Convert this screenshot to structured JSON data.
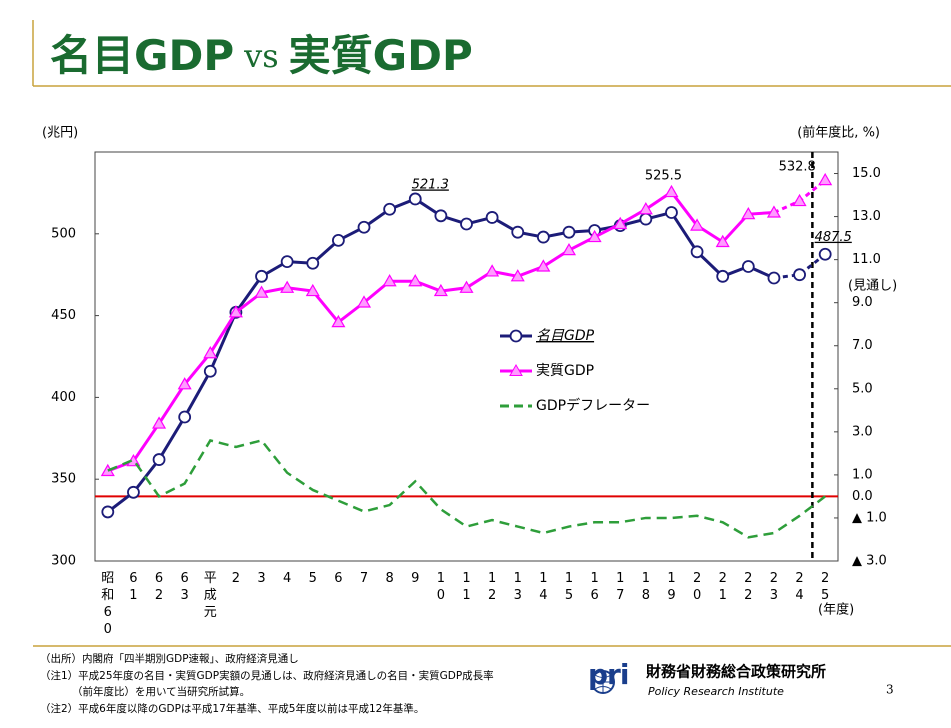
{
  "title": [
    "名目GDP",
    "vs",
    "実質GDP"
  ],
  "chart_data": {
    "type": "line",
    "y_label": "(兆円)",
    "y2_label": "(前年度比, %)",
    "x_label": "(年度)",
    "forecast_label": "(見通し)",
    "categories": [
      "昭和60",
      "61",
      "62",
      "63",
      "平成元",
      "2",
      "3",
      "4",
      "5",
      "6",
      "7",
      "8",
      "9",
      "10",
      "11",
      "12",
      "13",
      "14",
      "15",
      "16",
      "17",
      "18",
      "19",
      "20",
      "21",
      "22",
      "23",
      "24",
      "25"
    ],
    "series": [
      {
        "name": "名目GDP",
        "color": "#1c1c78",
        "marker": "circle",
        "values": [
          330,
          342,
          362,
          388,
          416,
          452,
          474,
          483,
          482,
          496,
          504,
          515,
          521.3,
          511,
          506,
          510,
          501,
          498,
          501,
          502,
          505,
          509,
          513,
          489,
          474,
          480,
          473,
          475,
          487.5
        ]
      },
      {
        "name": "実質GDP",
        "color": "#ff00ff",
        "marker": "triangle",
        "values": [
          355,
          361,
          384,
          408,
          427,
          452,
          464,
          467,
          465,
          446,
          458,
          471,
          471,
          465,
          467,
          477,
          474,
          480,
          490,
          498,
          506,
          515,
          525.5,
          505,
          495,
          512,
          513,
          520,
          532.8
        ]
      },
      {
        "name": "GDPデフレーター",
        "color": "#2e9e3a",
        "marker": "none",
        "axis": "y2",
        "values": [
          1.2,
          1.7,
          0.0,
          0.6,
          2.6,
          2.3,
          2.6,
          1.1,
          0.3,
          -0.2,
          -0.7,
          -0.4,
          0.7,
          -0.6,
          -1.4,
          -1.1,
          -1.4,
          -1.7,
          -1.4,
          -1.2,
          -1.2,
          -1.0,
          -1.0,
          -0.9,
          -1.2,
          -1.9,
          -1.7,
          -0.9,
          0.0
        ]
      }
    ],
    "ylim": [
      300,
      550
    ],
    "yticks": [
      300,
      350,
      400,
      450,
      500
    ],
    "y2lim": [
      -3,
      16
    ],
    "y2ticks": [
      {
        "value": 15,
        "label": "15.0"
      },
      {
        "value": 13,
        "label": "13.0"
      },
      {
        "value": 11,
        "label": "11.0"
      },
      {
        "value": 9,
        "label": "9.0"
      },
      {
        "value": 7,
        "label": "7.0"
      },
      {
        "value": 5,
        "label": "5.0"
      },
      {
        "value": 3,
        "label": "3.0"
      },
      {
        "value": 1,
        "label": "1.0"
      },
      {
        "value": 0,
        "label": "0.0"
      },
      {
        "value": -1,
        "label": "▲ 1.0"
      },
      {
        "value": -3,
        "label": "▲ 3.0"
      }
    ],
    "zero_line_color": "#e00000",
    "grid": false
  },
  "footer": {
    "notes": [
      "（出所）内閣府「四半期別GDP速報」、政府経済見通し",
      "（注1）平成25年度の名目・実質GDP実額の見通しは、政府経済見通しの名目・実質GDP成長率",
      "（前年度比）を用いて当研究所試算。",
      "（注2）平成6年度以降のGDPは平成17年基準、平成5年度以前は平成12年基準。"
    ],
    "logo": "pri",
    "org": "財務省財務総合政策研究所",
    "org_en": "Policy Research Institute",
    "page": "3"
  }
}
